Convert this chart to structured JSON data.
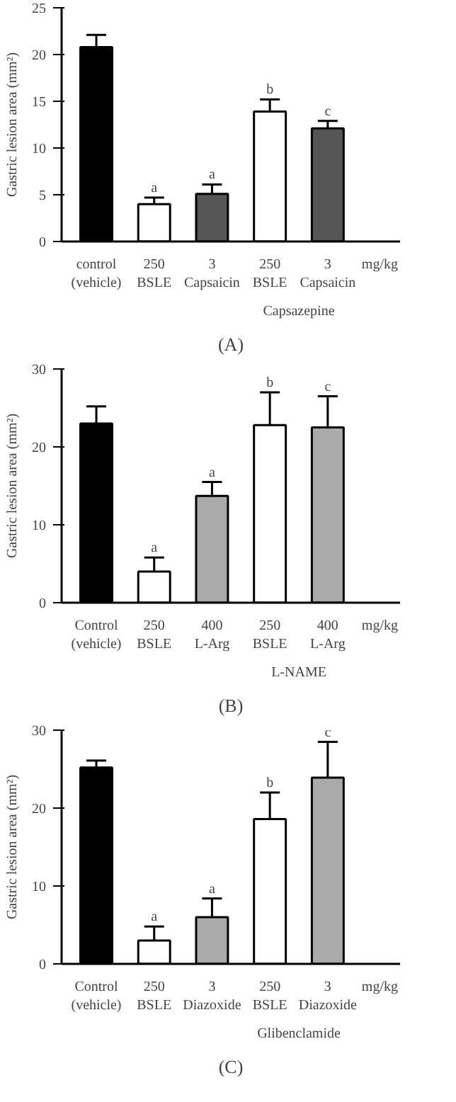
{
  "chart_data": [
    {
      "type": "bar",
      "title": "(A)",
      "ylabel": "Gastric lesion area (mm²)",
      "categories": [
        "control\n(vehicle)",
        "250\nBSLE",
        "3\nCapsaicin",
        "250\nBSLE",
        "3\nCapsaicin"
      ],
      "values": [
        20.8,
        4.0,
        5.1,
        13.9,
        12.1
      ],
      "errors": [
        1.3,
        0.7,
        1.0,
        1.3,
        0.8
      ],
      "colors": [
        "#000000",
        "#ffffff",
        "#555555",
        "#ffffff",
        "#555555"
      ],
      "value_labels": [
        null,
        "a",
        "a",
        "b",
        "c"
      ],
      "annotations": [
        "mg/kg",
        "Capsazepine"
      ],
      "ylim": [
        0,
        25
      ],
      "yticks": [
        0,
        5,
        10,
        15,
        20,
        25
      ],
      "grid": false
    },
    {
      "type": "bar",
      "title": "(B)",
      "ylabel": "Gastric lesion area (mm²)",
      "categories": [
        "Control\n(vehicle)",
        "250\nBSLE",
        "400\nL-Arg",
        "250\nBSLE",
        "400\nL-Arg"
      ],
      "values": [
        23.0,
        4.0,
        13.7,
        22.8,
        22.5
      ],
      "errors": [
        2.2,
        1.8,
        1.8,
        4.2,
        4.0
      ],
      "colors": [
        "#000000",
        "#ffffff",
        "#aaaaaa",
        "#ffffff",
        "#aaaaaa"
      ],
      "value_labels": [
        null,
        "a",
        "a",
        "b",
        "c"
      ],
      "annotations": [
        "mg/kg",
        "L-NAME"
      ],
      "ylim": [
        0,
        30
      ],
      "yticks": [
        0,
        10,
        20,
        30
      ],
      "grid": false
    },
    {
      "type": "bar",
      "title": "(C)",
      "ylabel": "Gastric lesion area (mm²)",
      "categories": [
        "Control\n(vehicle)",
        "250\nBSLE",
        "3\nDiazoxide",
        "250\nBSLE",
        "3\nDiazoxide"
      ],
      "values": [
        25.2,
        3.0,
        6.0,
        18.6,
        23.9
      ],
      "errors": [
        0.9,
        1.8,
        2.4,
        3.4,
        4.6
      ],
      "colors": [
        "#000000",
        "#ffffff",
        "#aaaaaa",
        "#ffffff",
        "#aaaaaa"
      ],
      "value_labels": [
        null,
        "a",
        "a",
        "b",
        "c"
      ],
      "annotations": [
        "mg/kg",
        "Glibenclamide"
      ],
      "ylim": [
        0,
        30
      ],
      "yticks": [
        0,
        10,
        20,
        30
      ],
      "grid": false
    }
  ]
}
